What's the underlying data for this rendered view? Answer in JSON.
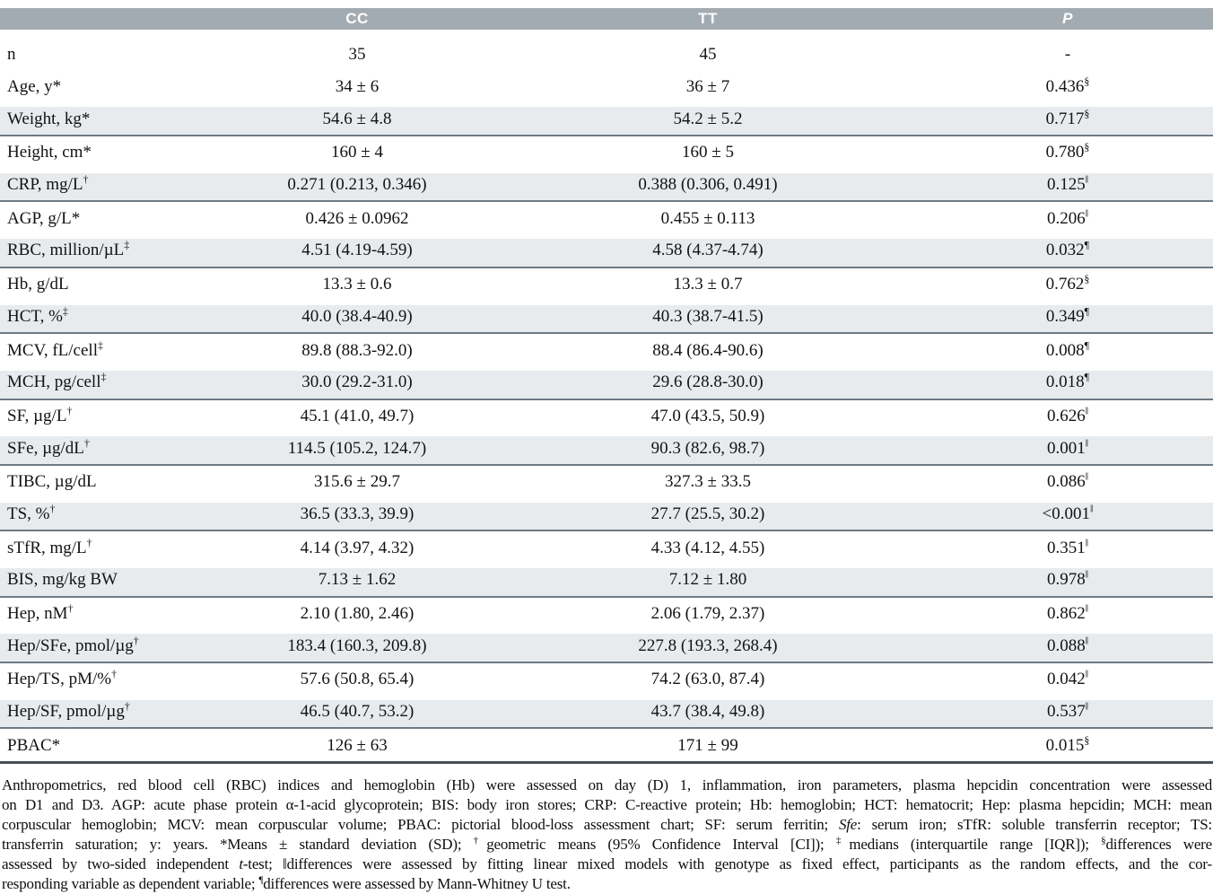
{
  "colors": {
    "header_bg": "#a3abb2",
    "header_text": "#ffffff",
    "row_shade": "#e8ebed",
    "divider": "#6e7a84",
    "table_bottom": "#46505a"
  },
  "table": {
    "columns": [
      "",
      "CC",
      "TT",
      "P"
    ],
    "rows": [
      {
        "label": "n",
        "cc": "35",
        "tt": "45",
        "p": "-",
        "shaded": false
      },
      {
        "label": "Age, y*",
        "cc": "34 ± 6",
        "tt": "36 ± 7",
        "p": "0.436",
        "p_sup": "§",
        "shaded": false
      },
      {
        "label": "Weight, kg*",
        "cc": "54.6 ± 4.8",
        "tt": "54.2 ± 5.2",
        "p": "0.717",
        "p_sup": "§",
        "shaded": true
      },
      {
        "label": "Height, cm*",
        "cc": "160 ± 4",
        "tt": "160 ± 5",
        "p": "0.780",
        "p_sup": "§",
        "shaded": false
      },
      {
        "label": "CRP, mg/L",
        "label_sup": "†",
        "cc": "0.271 (0.213, 0.346)",
        "tt": "0.388 (0.306, 0.491)",
        "p": "0.125",
        "p_sup": "‖",
        "shaded": true
      },
      {
        "label": "AGP, g/L*",
        "cc": "0.426 ± 0.0962",
        "tt": "0.455 ± 0.113",
        "p": "0.206",
        "p_sup": "‖",
        "shaded": false
      },
      {
        "label": "RBC, million/µL",
        "label_sup": "‡",
        "cc": "4.51 (4.19-4.59)",
        "tt": "4.58 (4.37-4.74)",
        "p": "0.032",
        "p_sup": "¶",
        "shaded": true
      },
      {
        "label": "Hb, g/dL",
        "cc": "13.3 ± 0.6",
        "tt": "13.3 ± 0.7",
        "p": "0.762",
        "p_sup": "§",
        "shaded": false
      },
      {
        "label": "HCT, %",
        "label_sup": "‡",
        "cc": "40.0 (38.4-40.9)",
        "tt": "40.3 (38.7-41.5)",
        "p": "0.349",
        "p_sup": "¶",
        "shaded": true
      },
      {
        "label": "MCV, fL/cell",
        "label_sup": "‡",
        "cc": "89.8 (88.3-92.0)",
        "tt": "88.4 (86.4-90.6)",
        "p": "0.008",
        "p_sup": "¶",
        "shaded": false
      },
      {
        "label": "MCH, pg/cell",
        "label_sup": "‡",
        "cc": "30.0 (29.2-31.0)",
        "tt": "29.6 (28.8-30.0)",
        "p": "0.018",
        "p_sup": "¶",
        "shaded": true
      },
      {
        "label": "SF, µg/L",
        "label_sup": "†",
        "cc": "45.1 (41.0, 49.7)",
        "tt": "47.0 (43.5, 50.9)",
        "p": "0.626",
        "p_sup": "‖",
        "shaded": false
      },
      {
        "label": "SFe, µg/dL",
        "label_sup": "†",
        "cc": "114.5 (105.2, 124.7)",
        "tt": "90.3 (82.6, 98.7)",
        "p": "0.001",
        "p_sup": "‖",
        "shaded": true
      },
      {
        "label": "TIBC, µg/dL",
        "cc": "315.6 ± 29.7",
        "tt": "327.3 ± 33.5",
        "p": "0.086",
        "p_sup": "‖",
        "shaded": false
      },
      {
        "label": "TS, %",
        "label_sup": "†",
        "cc": "36.5 (33.3, 39.9)",
        "tt": "27.7 (25.5, 30.2)",
        "p": "<0.001",
        "p_sup": "‖",
        "shaded": true
      },
      {
        "label": "sTfR, mg/L",
        "label_sup": "†",
        "cc": "4.14 (3.97, 4.32)",
        "tt": "4.33 (4.12, 4.55)",
        "p": "0.351",
        "p_sup": "‖",
        "shaded": false
      },
      {
        "label": "BIS, mg/kg BW",
        "cc": "7.13 ± 1.62",
        "tt": "7.12 ± 1.80",
        "p": "0.978",
        "p_sup": "‖",
        "shaded": true
      },
      {
        "label": "Hep, nM",
        "label_sup": "†",
        "cc": "2.10 (1.80, 2.46)",
        "tt": "2.06 (1.79, 2.37)",
        "p": "0.862",
        "p_sup": "‖",
        "shaded": false
      },
      {
        "label": "Hep/SFe, pmol/µg",
        "label_sup": "†",
        "cc": "183.4 (160.3, 209.8)",
        "tt": "227.8 (193.3, 268.4)",
        "p": "0.088",
        "p_sup": "‖",
        "shaded": true
      },
      {
        "label": "Hep/TS, pM/%",
        "label_sup": "†",
        "cc": "57.6 (50.8, 65.4)",
        "tt": "74.2 (63.0, 87.4)",
        "p": "0.042",
        "p_sup": "‖",
        "shaded": false
      },
      {
        "label": "Hep/SF, pmol/µg",
        "label_sup": "†",
        "cc": "46.5 (40.7, 53.2)",
        "tt": "43.7 (38.4, 49.8)",
        "p": "0.537",
        "p_sup": "‖",
        "shaded": true
      },
      {
        "label": "PBAC*",
        "cc": "126 ± 63",
        "tt": "171 ± 99",
        "p": "0.015",
        "p_sup": "§",
        "shaded": false
      }
    ]
  },
  "footnote": {
    "lines": [
      [
        {
          "t": "Anthropometrics, red blood cell (RBC) indices and hemoglobin (Hb) were assessed on day (D) 1, inflammation, iron parameters, plasma hepcidin concentration were assessed"
        }
      ],
      [
        {
          "t": "on D1 and D3. AGP: acute phase protein α-1-acid glycoprotein; BIS: body iron stores; CRP: C-reactive protein; Hb: hemoglobin; HCT: hematocrit; Hep: plasma hepcidin; MCH: mean"
        }
      ],
      [
        {
          "t": "corpuscular hemoglobin; MCV: mean corpuscular volume; PBAC: pictorial blood-loss assessment chart; SF: serum ferritin; "
        },
        {
          "t": "Sfe",
          "it": true
        },
        {
          "t": ": serum iron; sTfR: soluble transferrin receptor; TS:"
        }
      ],
      [
        {
          "t": "transferrin saturation; y: years. *Means ± standard deviation (SD); "
        },
        {
          "t": "†",
          "sup": true
        },
        {
          "t": "geometric means (95% Confidence Interval [CI]); "
        },
        {
          "t": "‡",
          "sup": true
        },
        {
          "t": "medians (interquartile range [IQR]); "
        },
        {
          "t": "§",
          "sup": true
        },
        {
          "t": "differences were"
        }
      ],
      [
        {
          "t": "assessed by two-sided independent "
        },
        {
          "t": "t",
          "it": true
        },
        {
          "t": "-test; ‖differences were assessed by fitting linear mixed models with genotype as fixed effect, participants as the random effects, and the cor-"
        }
      ],
      [
        {
          "t": "responding variable as dependent variable; "
        },
        {
          "t": "¶",
          "sup": true
        },
        {
          "t": "differences were assessed by Mann-Whitney U test."
        }
      ]
    ]
  }
}
